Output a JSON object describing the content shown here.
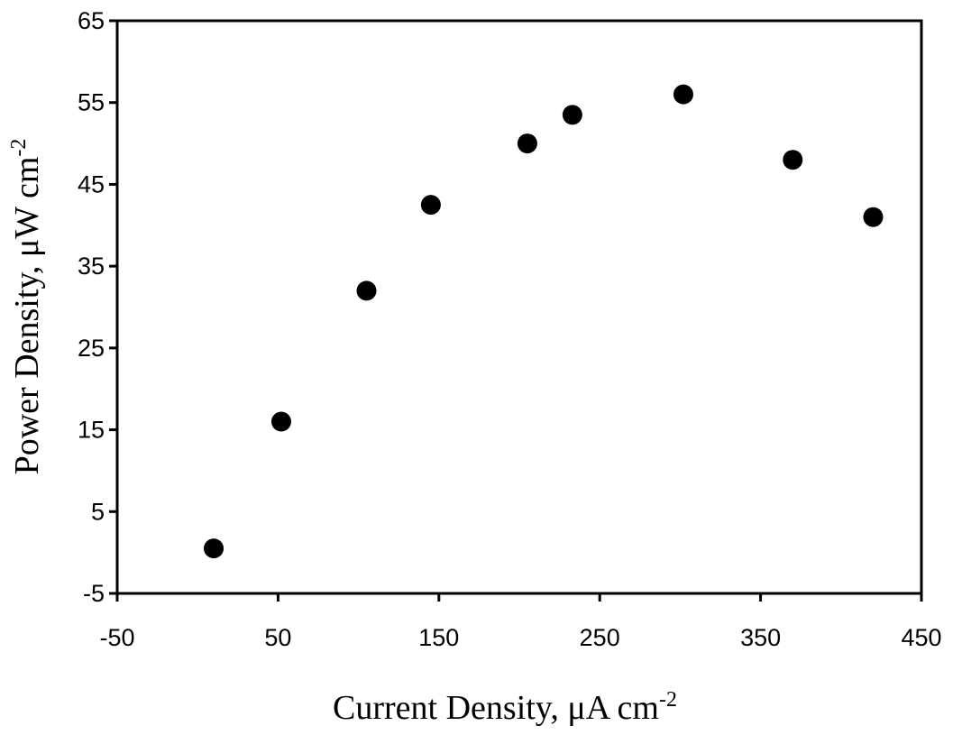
{
  "chart_data": {
    "type": "scatter",
    "title": "",
    "xlabel": "Current Density, μA cm",
    "xlabel_superscript": "-2",
    "ylabel": "Power Density, μW cm",
    "ylabel_superscript": "-2",
    "xlim": [
      -50,
      450
    ],
    "ylim": [
      -5,
      65
    ],
    "xticks": [
      -50,
      50,
      150,
      250,
      350,
      450
    ],
    "yticks": [
      -5,
      5,
      15,
      25,
      35,
      45,
      55,
      65
    ],
    "grid": false,
    "legend": "none",
    "marker_color": "#000000",
    "series": [
      {
        "points": [
          {
            "x": 10,
            "y": 0.5
          },
          {
            "x": 52,
            "y": 16
          },
          {
            "x": 105,
            "y": 32
          },
          {
            "x": 145,
            "y": 42.5
          },
          {
            "x": 205,
            "y": 50
          },
          {
            "x": 233,
            "y": 53.5
          },
          {
            "x": 302,
            "y": 56
          },
          {
            "x": 370,
            "y": 48
          },
          {
            "x": 420,
            "y": 41
          }
        ]
      }
    ]
  }
}
